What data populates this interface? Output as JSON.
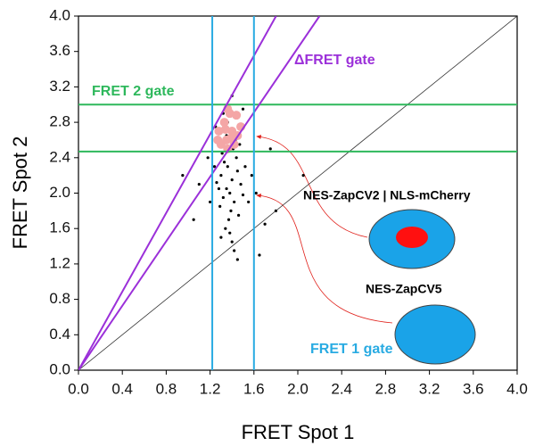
{
  "chart_data": {
    "type": "scatter",
    "xlabel": "FRET Spot 1",
    "ylabel": "FRET Spot 2",
    "xlim": [
      0,
      4
    ],
    "ylim": [
      0,
      4
    ],
    "xticks": [
      {
        "value": 0,
        "label": "0.0"
      },
      {
        "value": 0.4,
        "label": "0.4"
      },
      {
        "value": 0.8,
        "label": "0.8"
      },
      {
        "value": 1.2,
        "label": "1.2"
      },
      {
        "value": 1.6,
        "label": "1.6"
      },
      {
        "value": 2,
        "label": "2.0"
      },
      {
        "value": 2.4,
        "label": "2.4"
      },
      {
        "value": 2.8,
        "label": "2.8"
      },
      {
        "value": 3.2,
        "label": "3.2"
      },
      {
        "value": 3.6,
        "label": "3.6"
      },
      {
        "value": 4,
        "label": "4.0"
      }
    ],
    "yticks": [
      {
        "value": 0,
        "label": "0.0"
      },
      {
        "value": 0.4,
        "label": "0.4"
      },
      {
        "value": 0.8,
        "label": "0.8"
      },
      {
        "value": 1.2,
        "label": "1.2"
      },
      {
        "value": 1.6,
        "label": "1.6"
      },
      {
        "value": 2,
        "label": "2.0"
      },
      {
        "value": 2.4,
        "label": "2.4"
      },
      {
        "value": 2.8,
        "label": "2.8"
      },
      {
        "value": 3.2,
        "label": "3.2"
      },
      {
        "value": 3.6,
        "label": "3.6"
      },
      {
        "value": 4,
        "label": "4.0"
      }
    ],
    "series": [
      {
        "color": "#000000",
        "x": [
          1.35,
          1.4,
          1.32,
          1.45,
          1.38,
          1.3,
          1.42,
          1.36,
          1.48,
          1.28,
          1.39,
          1.44,
          1.33,
          1.37,
          1.41,
          1.26,
          1.5,
          1.34,
          1.43,
          1.31,
          1.46,
          1.38,
          1.52,
          1.29,
          1.4,
          1.47,
          1.35,
          1.55,
          1.24,
          1.42,
          1.58,
          1.2,
          1.62,
          1.3,
          1.18,
          1.7,
          1.1,
          1.45,
          1.75,
          1.05,
          2.05,
          0.95,
          1.36,
          1.32,
          1.4,
          1.44,
          1.5,
          1.8,
          1.65,
          1.25
        ],
        "y": [
          2.05,
          2.15,
          1.95,
          2.25,
          2.0,
          2.2,
          1.9,
          2.3,
          2.1,
          2.05,
          1.8,
          2.4,
          2.35,
          1.7,
          2.5,
          2.12,
          1.98,
          1.6,
          2.6,
          2.45,
          1.75,
          1.55,
          2.3,
          1.85,
          1.45,
          2.55,
          2.65,
          1.9,
          2.3,
          1.35,
          2.2,
          1.9,
          2.0,
          1.5,
          2.4,
          1.65,
          2.1,
          1.25,
          2.5,
          1.7,
          2.2,
          2.2,
          2.8,
          2.9,
          3.1,
          2.85,
          2.95,
          1.8,
          1.3,
          2.75
        ]
      },
      {
        "color": "#f4a6a6",
        "x": [
          1.3,
          1.35,
          1.4,
          1.33,
          1.45,
          1.38,
          1.28,
          1.42,
          1.36,
          1.48,
          1.36,
          1.39,
          1.34,
          1.44,
          1.27
        ],
        "y": [
          2.55,
          2.6,
          2.7,
          2.8,
          2.65,
          2.9,
          2.7,
          2.55,
          2.5,
          2.75,
          2.95,
          2.62,
          2.72,
          2.88,
          2.6
        ]
      }
    ],
    "reference_line": {
      "slope": 1,
      "color": "#333333"
    },
    "gates": [
      {
        "label": "FRET 2 gate",
        "color": "#2eb85c",
        "y": [
          2.47,
          3.0
        ]
      },
      {
        "label": "ΔFRET gate",
        "color": "#9b30d9",
        "slopes": [
          2.22,
          1.82
        ]
      },
      {
        "label": "FRET 1 gate",
        "color": "#29abe2",
        "x": [
          1.22,
          1.6
        ]
      }
    ],
    "annotations": [
      "NES-ZapCV2 | NLS-mCherry",
      "NES-ZapCV5"
    ]
  }
}
